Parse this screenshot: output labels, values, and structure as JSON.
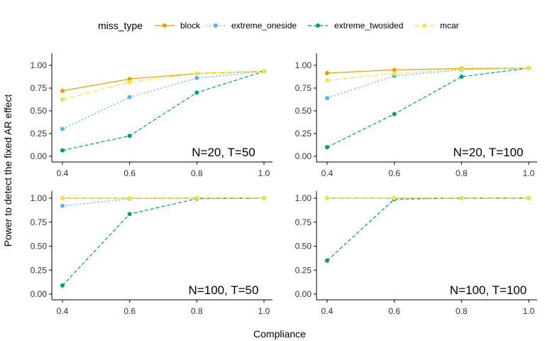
{
  "chart_data": {
    "type": "line",
    "xlabel": "Compliance",
    "ylabel": "Power to detect the fixed AR effect",
    "xlim": [
      0.4,
      1.0
    ],
    "ylim": [
      0,
      1
    ],
    "x_ticks": [
      "0.4",
      "0.6",
      "0.8",
      "1.0"
    ],
    "y_ticks": [
      "0.00",
      "0.25",
      "0.50",
      "0.75",
      "1.00"
    ],
    "grid": false,
    "legend": {
      "title": "miss_type",
      "position": "top",
      "entries": [
        {
          "name": "block",
          "color": "#E69F00",
          "dash": "solid"
        },
        {
          "name": "extreme_oneside",
          "color": "#56B4E9",
          "dash": "dotted"
        },
        {
          "name": "extreme_twosided",
          "color": "#009E73",
          "dash": "dashed"
        },
        {
          "name": "mcar",
          "color": "#F0E442",
          "dash": "longdash"
        }
      ]
    },
    "panels": [
      {
        "label": "N=20, T=50",
        "x": [
          0.4,
          0.6,
          0.8,
          1.0
        ],
        "series": [
          {
            "name": "block",
            "values": [
              0.72,
              0.85,
              0.91,
              0.935
            ]
          },
          {
            "name": "extreme_oneside",
            "values": [
              0.3,
              0.65,
              0.86,
              0.935
            ]
          },
          {
            "name": "extreme_twosided",
            "values": [
              0.065,
              0.225,
              0.7,
              0.935
            ]
          },
          {
            "name": "mcar",
            "values": [
              0.625,
              0.815,
              0.91,
              0.935
            ]
          }
        ]
      },
      {
        "label": "N=20, T=100",
        "x": [
          0.4,
          0.6,
          0.8,
          1.0
        ],
        "series": [
          {
            "name": "block",
            "values": [
              0.915,
              0.95,
              0.965,
              0.97
            ]
          },
          {
            "name": "extreme_oneside",
            "values": [
              0.64,
              0.885,
              0.95,
              0.97
            ]
          },
          {
            "name": "extreme_twosided",
            "values": [
              0.1,
              0.465,
              0.875,
              0.97
            ]
          },
          {
            "name": "mcar",
            "values": [
              0.835,
              0.91,
              0.955,
              0.97
            ]
          }
        ]
      },
      {
        "label": "N=100, T=50",
        "x": [
          0.4,
          0.6,
          0.8,
          1.0
        ],
        "series": [
          {
            "name": "block",
            "values": [
              1.0,
              1.0,
              1.0,
              1.0
            ]
          },
          {
            "name": "extreme_oneside",
            "values": [
              0.92,
              0.995,
              1.0,
              1.0
            ]
          },
          {
            "name": "extreme_twosided",
            "values": [
              0.09,
              0.835,
              0.995,
              1.0
            ]
          },
          {
            "name": "mcar",
            "values": [
              1.0,
              1.0,
              1.0,
              1.0
            ]
          }
        ]
      },
      {
        "label": "N=100, T=100",
        "x": [
          0.4,
          0.6,
          0.8,
          1.0
        ],
        "series": [
          {
            "name": "block",
            "values": [
              1.0,
              1.0,
              1.0,
              1.0
            ]
          },
          {
            "name": "extreme_oneside",
            "values": [
              1.0,
              1.0,
              1.0,
              1.0
            ]
          },
          {
            "name": "extreme_twosided",
            "values": [
              0.35,
              0.99,
              1.0,
              1.0
            ]
          },
          {
            "name": "mcar",
            "values": [
              1.0,
              1.0,
              1.0,
              1.0
            ]
          }
        ]
      }
    ]
  }
}
